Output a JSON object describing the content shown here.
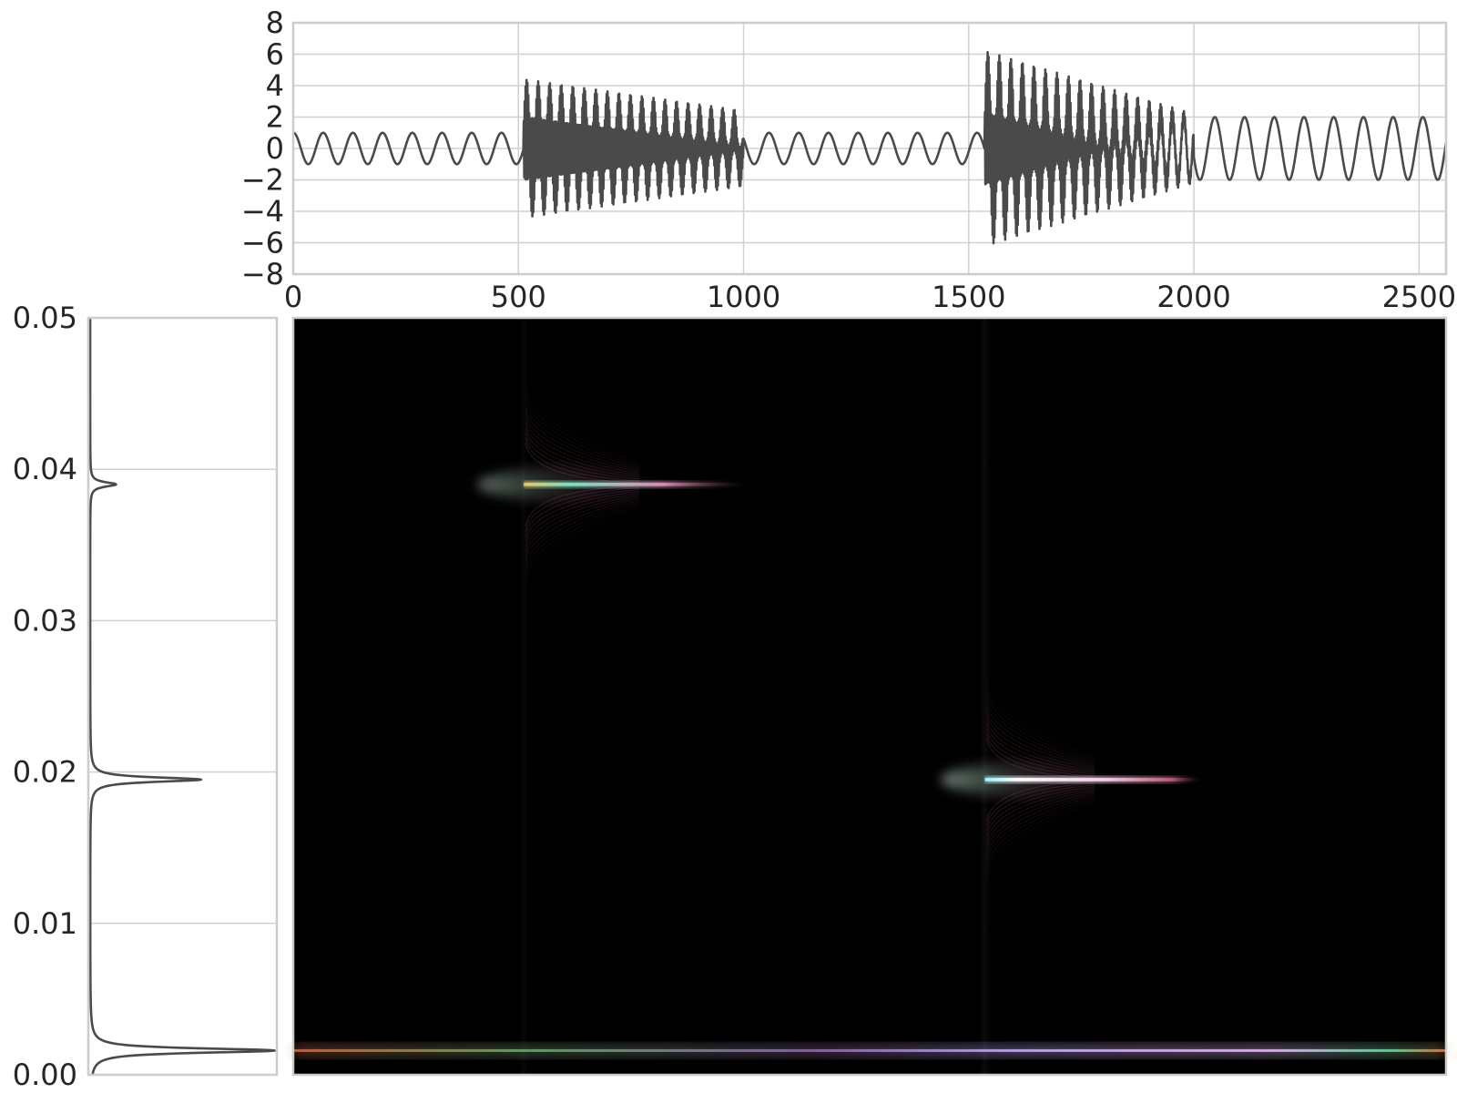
{
  "chart_data": [
    {
      "type": "line",
      "panel": "signal",
      "xlabel": "",
      "ylabel": "",
      "xlim": [
        0,
        2560
      ],
      "ylim": [
        -8,
        8
      ],
      "x_ticks": [
        0,
        500,
        1000,
        1500,
        2000,
        2500
      ],
      "x_tick_labels": [
        "0",
        "500",
        "1000",
        "1500",
        "2000",
        "2500"
      ],
      "y_ticks": [
        -8,
        -6,
        -4,
        -2,
        0,
        2,
        4,
        6,
        8
      ],
      "y_tick_labels": [
        "−8",
        "−6",
        "−4",
        "−2",
        "0",
        "2",
        "4",
        "6",
        "8"
      ],
      "grid": true,
      "segments": [
        {
          "x_start": 0,
          "x_end": 512,
          "description": "sine",
          "base_period": 66,
          "base_amplitude": 1.0,
          "burst": false
        },
        {
          "x_start": 512,
          "x_end": 1000,
          "description": "sine with high-frequency burst",
          "base_period": 66,
          "base_amplitude": 1.2,
          "burst": true,
          "burst_envelope_start": 3.2,
          "burst_envelope_end": 1.2,
          "burst_period": 25.6
        },
        {
          "x_start": 1000,
          "x_end": 1536,
          "description": "sine",
          "base_period": 66,
          "base_amplitude": 1.0,
          "burst": false
        },
        {
          "x_start": 1536,
          "x_end": 2000,
          "description": "sine with high-frequency burst",
          "base_period": 51,
          "base_amplitude": 2.0,
          "burst": true,
          "burst_envelope_start": 4.2,
          "burst_envelope_end": 0.2,
          "burst_period": 25.6
        },
        {
          "x_start": 2000,
          "x_end": 2560,
          "description": "sine",
          "base_period": 66,
          "base_amplitude": 2.0,
          "burst": false
        }
      ],
      "line_color": "#4a4a4a"
    },
    {
      "type": "line",
      "panel": "spectrum",
      "orientation": "vertical",
      "xlabel": "",
      "ylabel": "",
      "ylim": [
        0,
        0.05
      ],
      "y_ticks": [
        0.0,
        0.01,
        0.02,
        0.03,
        0.04,
        0.05
      ],
      "y_tick_labels": [
        "0.00",
        "0.01",
        "0.02",
        "0.03",
        "0.04",
        "0.05"
      ],
      "grid": true,
      "peaks": [
        {
          "frequency": 0.0016,
          "relative_height": 1.0
        },
        {
          "frequency": 0.0195,
          "relative_height": 0.6
        },
        {
          "frequency": 0.039,
          "relative_height": 0.14
        }
      ],
      "line_color": "#4a4a4a"
    },
    {
      "type": "heatmap",
      "panel": "time-frequency",
      "xlim": [
        0,
        2560
      ],
      "ylim": [
        0,
        0.05
      ],
      "background": "#000000",
      "features": [
        {
          "kind": "horizontal-ridge",
          "frequency": 0.039,
          "x_start": 512,
          "x_end": 1000,
          "intensity": 0.85
        },
        {
          "kind": "horizontal-ridge",
          "frequency": 0.0195,
          "x_start": 1536,
          "x_end": 2000,
          "intensity": 1.0
        },
        {
          "kind": "horizontal-ridge",
          "frequency": 0.0016,
          "x_start": 0,
          "x_end": 2560,
          "intensity": 0.9
        },
        {
          "kind": "vertical-streak",
          "x": 512,
          "intensity": 0.2
        },
        {
          "kind": "vertical-streak",
          "x": 1536,
          "intensity": 0.35
        }
      ]
    }
  ]
}
